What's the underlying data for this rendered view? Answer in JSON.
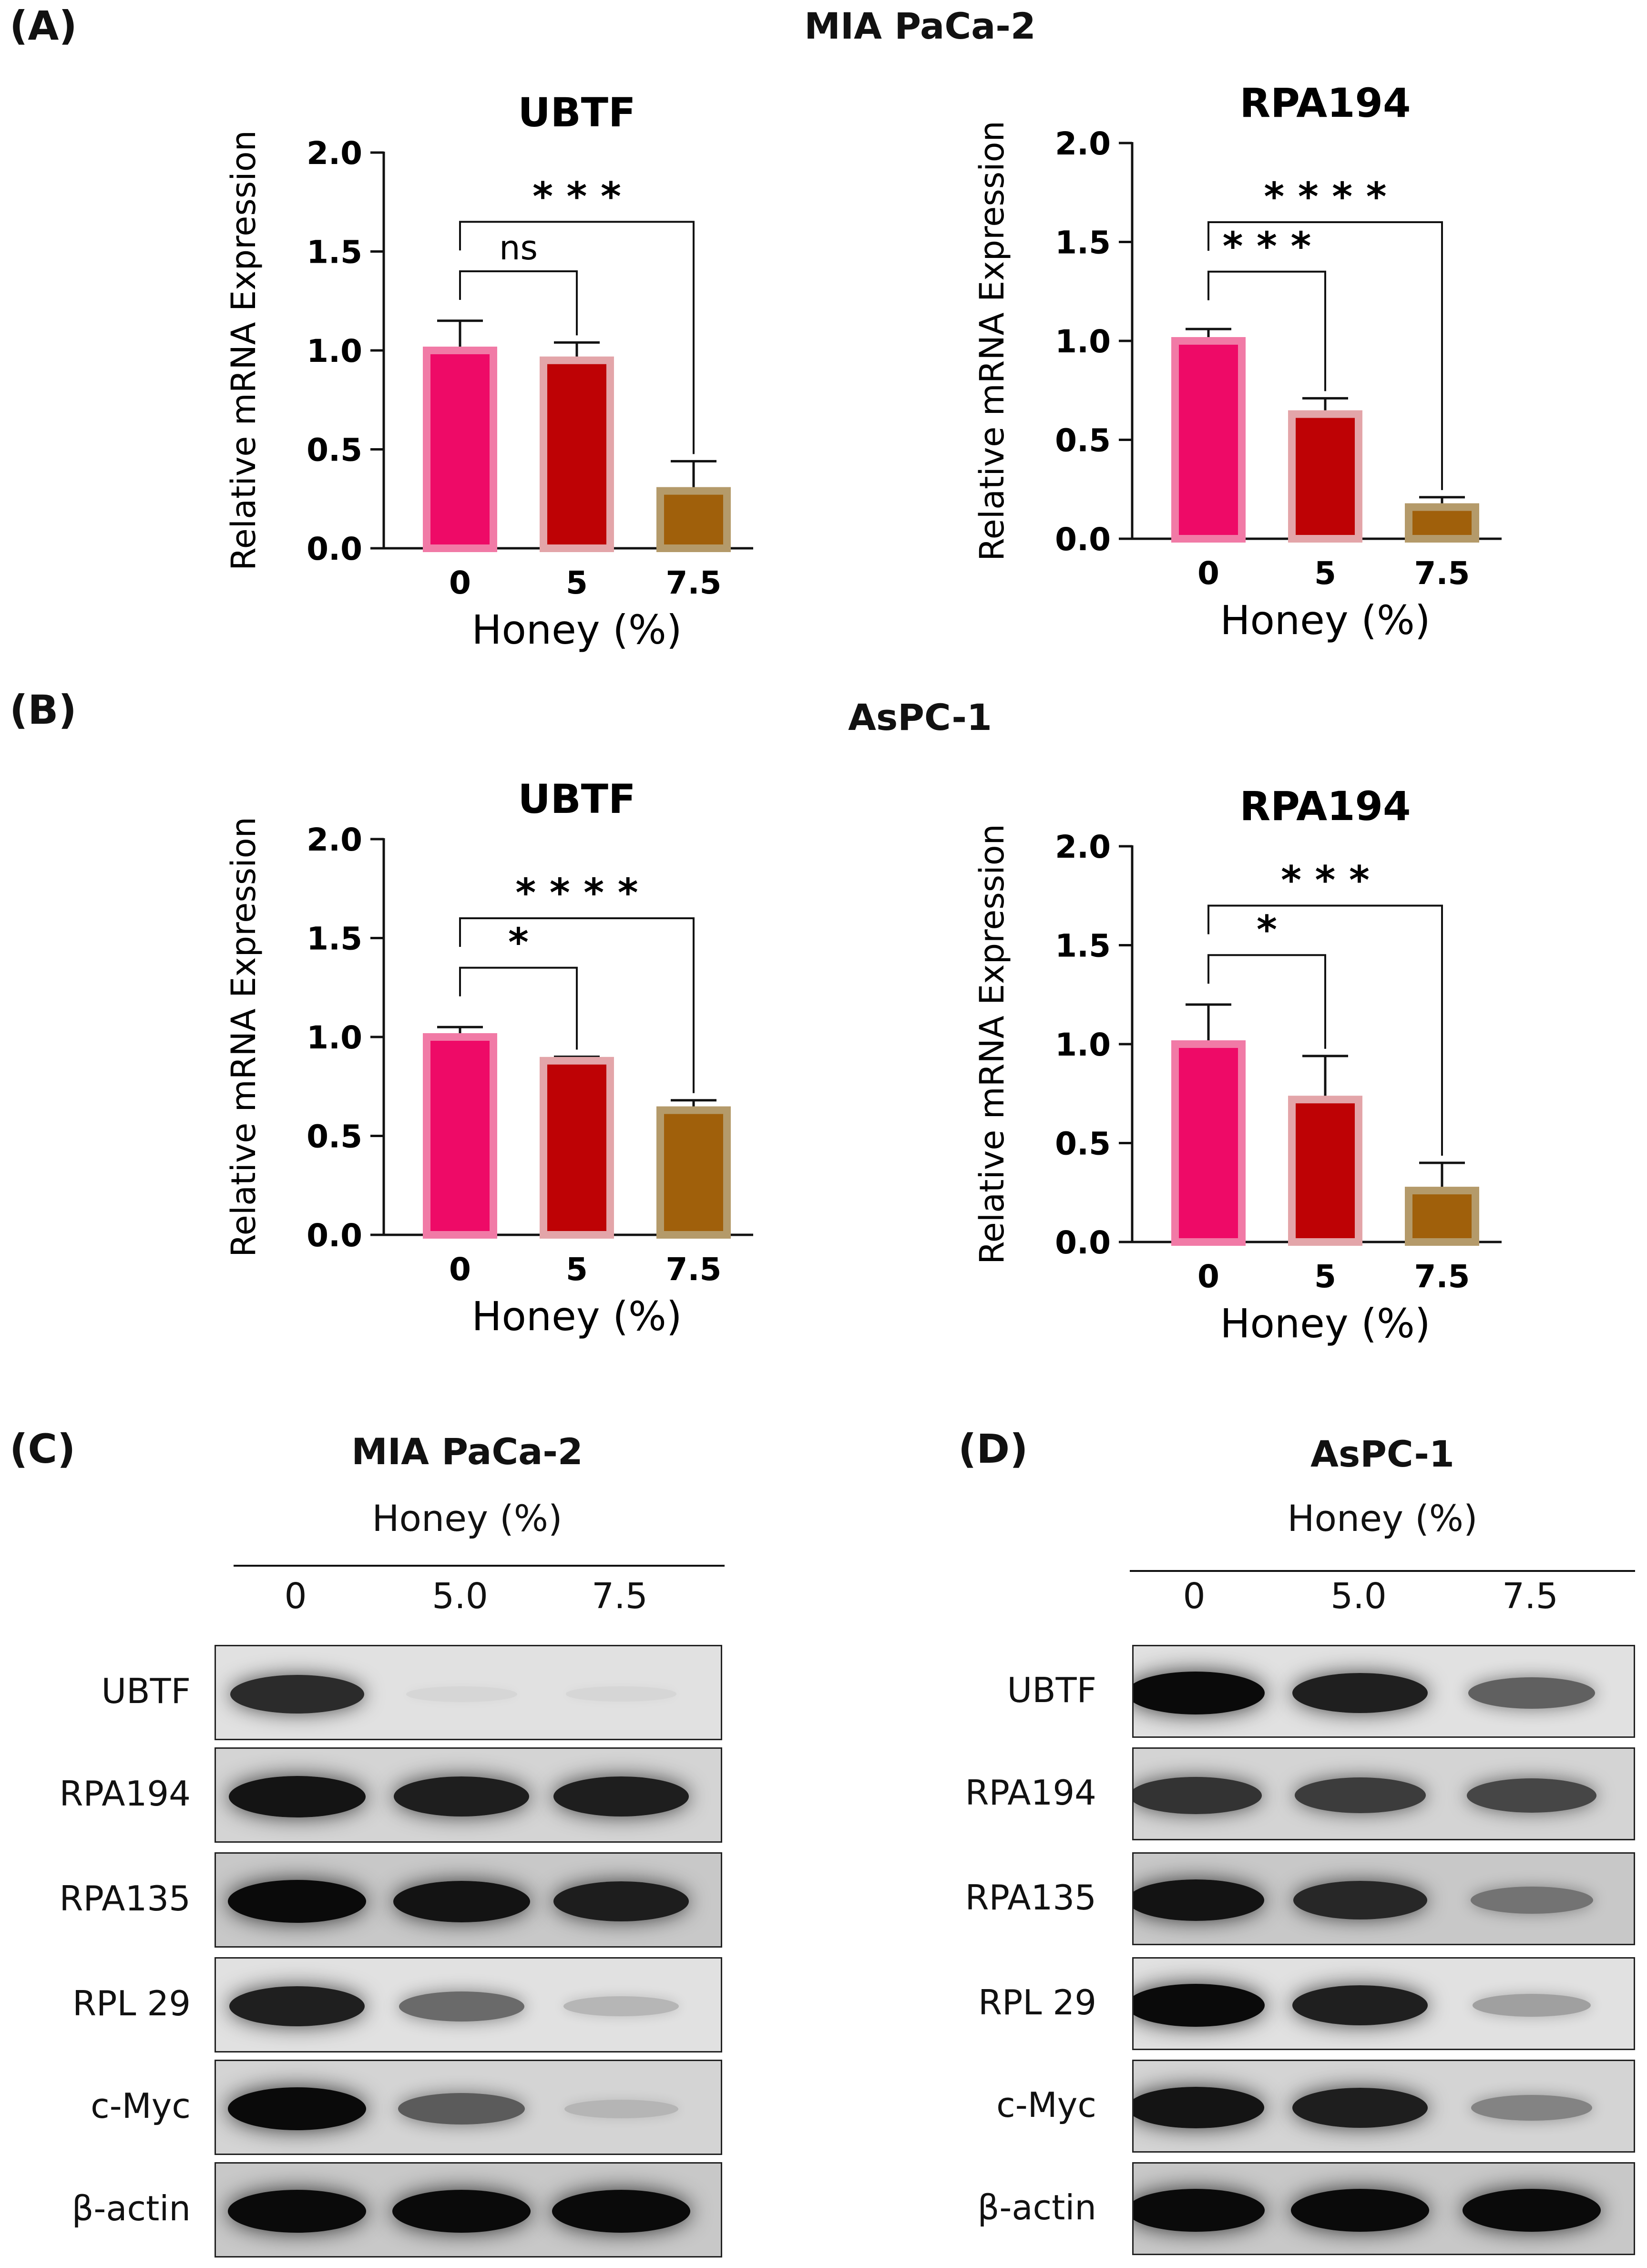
{
  "panels": {
    "a_label": "(A)",
    "b_label": "(B)",
    "c_label": "(C)",
    "d_label": "(D)",
    "a_title": "MIA PaCa-2",
    "b_title": "AsPC-1"
  },
  "chart_data": [
    {
      "type": "bar",
      "title": "UBTF",
      "cell_line": "MIA PaCa-2",
      "categories": [
        "0",
        "5",
        "7.5"
      ],
      "values": [
        1.0,
        0.95,
        0.29
      ],
      "errors": [
        0.15,
        0.09,
        0.15
      ],
      "xlabel": "Honey (%)",
      "ylabel": "Relative mRNA Expression",
      "ylim": [
        0,
        2.0
      ],
      "yticks": [
        "0.0",
        "0.5",
        "1.0",
        "1.5",
        "2.0"
      ],
      "bar_fill": [
        "#ee0a67",
        "#be0205",
        "#a0600b"
      ],
      "bar_edge": [
        "#f17aa6",
        "#e3a5a9",
        "#b49a6a"
      ],
      "comparisons": [
        {
          "from": 0,
          "to": 1,
          "label": "ns",
          "level": 1
        },
        {
          "from": 0,
          "to": 2,
          "label": "* * *",
          "level": 2
        }
      ]
    },
    {
      "type": "bar",
      "title": "RPA194",
      "cell_line": "MIA PaCa-2",
      "categories": [
        "0",
        "5",
        "7.5"
      ],
      "values": [
        1.0,
        0.63,
        0.16
      ],
      "errors": [
        0.06,
        0.08,
        0.05
      ],
      "xlabel": "Honey (%)",
      "ylabel": "Relative mRNA Expression",
      "ylim": [
        0,
        2.0
      ],
      "yticks": [
        "0.0",
        "0.5",
        "1.0",
        "1.5",
        "2.0"
      ],
      "bar_fill": [
        "#ee0a67",
        "#be0205",
        "#a0600b"
      ],
      "bar_edge": [
        "#f17aa6",
        "#e3a5a9",
        "#b49a6a"
      ],
      "comparisons": [
        {
          "from": 0,
          "to": 1,
          "label": "* * *",
          "level": 1
        },
        {
          "from": 0,
          "to": 2,
          "label": "* * * *",
          "level": 2
        }
      ]
    },
    {
      "type": "bar",
      "title": "UBTF",
      "cell_line": "AsPC-1",
      "categories": [
        "0",
        "5",
        "7.5"
      ],
      "values": [
        1.0,
        0.88,
        0.63
      ],
      "errors": [
        0.05,
        0.02,
        0.05
      ],
      "xlabel": "Honey (%)",
      "ylabel": "Relative mRNA Expression",
      "ylim": [
        0,
        2.0
      ],
      "yticks": [
        "0.0",
        "0.5",
        "1.0",
        "1.5",
        "2.0"
      ],
      "bar_fill": [
        "#ee0a67",
        "#be0205",
        "#a0600b"
      ],
      "bar_edge": [
        "#f17aa6",
        "#e3a5a9",
        "#b49a6a"
      ],
      "comparisons": [
        {
          "from": 0,
          "to": 1,
          "label": "*",
          "level": 1
        },
        {
          "from": 0,
          "to": 2,
          "label": "* * * *",
          "level": 2
        }
      ]
    },
    {
      "type": "bar",
      "title": "RPA194",
      "cell_line": "AsPC-1",
      "categories": [
        "0",
        "5",
        "7.5"
      ],
      "values": [
        1.0,
        0.72,
        0.26
      ],
      "errors": [
        0.2,
        0.22,
        0.14
      ],
      "xlabel": "Honey (%)",
      "ylabel": "Relative mRNA Expression",
      "ylim": [
        0,
        2.0
      ],
      "yticks": [
        "0.0",
        "0.5",
        "1.0",
        "1.5",
        "2.0"
      ],
      "bar_fill": [
        "#ee0a67",
        "#be0205",
        "#a0600b"
      ],
      "bar_edge": [
        "#f17aa6",
        "#e3a5a9",
        "#b49a6a"
      ],
      "comparisons": [
        {
          "from": 0,
          "to": 1,
          "label": "*",
          "level": 1
        },
        {
          "from": 0,
          "to": 2,
          "label": "* * *",
          "level": 2
        }
      ]
    }
  ],
  "blots": {
    "c": {
      "title": "MIA PaCa-2",
      "honey_label": "Honey (%)",
      "lanes": [
        "0",
        "5.0",
        "7.5"
      ],
      "rows": [
        {
          "label": "UBTF",
          "intensity": [
            0.85,
            0.05,
            0.02
          ]
        },
        {
          "label": "RPA194",
          "intensity": [
            0.95,
            0.9,
            0.9
          ]
        },
        {
          "label": "RPA135",
          "intensity": [
            1.0,
            0.95,
            0.9
          ]
        },
        {
          "label": "RPL 29",
          "intensity": [
            0.9,
            0.55,
            0.2
          ]
        },
        {
          "label": "c-Myc",
          "intensity": [
            1.0,
            0.6,
            0.15
          ]
        },
        {
          "label": "β-actin",
          "intensity": [
            1.0,
            1.0,
            1.0
          ]
        }
      ]
    },
    "d": {
      "title": "AsPC-1",
      "honey_label": "Honey (%)",
      "lanes": [
        "0",
        "5.0",
        "7.5"
      ],
      "rows": [
        {
          "label": "UBTF",
          "intensity": [
            1.0,
            0.9,
            0.6
          ]
        },
        {
          "label": "RPA194",
          "intensity": [
            0.8,
            0.75,
            0.7
          ]
        },
        {
          "label": "RPA135",
          "intensity": [
            0.95,
            0.85,
            0.45
          ]
        },
        {
          "label": "RPL 29",
          "intensity": [
            1.0,
            0.9,
            0.3
          ]
        },
        {
          "label": "c-Myc",
          "intensity": [
            0.95,
            0.9,
            0.4
          ]
        },
        {
          "label": "β-actin",
          "intensity": [
            1.0,
            1.0,
            1.0
          ]
        }
      ]
    }
  }
}
